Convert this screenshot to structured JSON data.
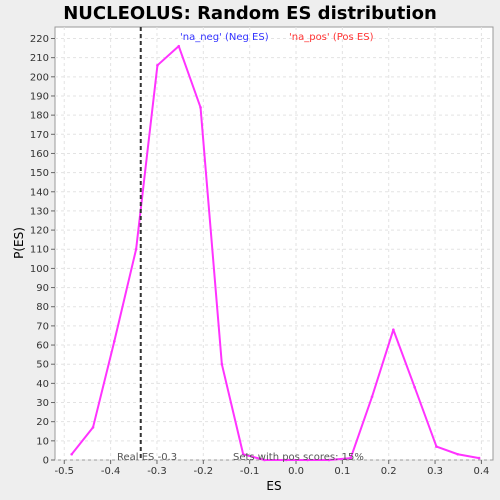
{
  "chart_data": {
    "type": "line",
    "title": "NUCLEOLUS: Random ES distribution",
    "xlabel": "ES",
    "ylabel": "P(ES)",
    "xlim": [
      -0.52,
      0.425
    ],
    "ylim": [
      0,
      226
    ],
    "x_ticks": [
      -0.5,
      -0.4,
      -0.3,
      -0.2,
      -0.1,
      0.0,
      0.1,
      0.2,
      0.3,
      0.4
    ],
    "x_tick_labels": [
      "-0.5",
      "-0.4",
      "-0.3",
      "-0.2",
      "-0.1",
      "0.0",
      "0.1",
      "0.2",
      "0.3",
      "0.4"
    ],
    "y_ticks": [
      0,
      10,
      20,
      30,
      40,
      50,
      60,
      70,
      80,
      90,
      100,
      110,
      120,
      130,
      140,
      150,
      160,
      170,
      180,
      190,
      200,
      210,
      220
    ],
    "grid": true,
    "series": [
      {
        "color": "#ff33ff",
        "x": [
          -0.484,
          -0.438,
          -0.392,
          -0.345,
          -0.299,
          -0.253,
          -0.206,
          -0.16,
          -0.114,
          -0.068,
          -0.021,
          0.025,
          0.071,
          0.118,
          0.164,
          0.21,
          0.256,
          0.303,
          0.349,
          0.395
        ],
        "y": [
          3,
          17,
          62,
          110,
          206,
          216,
          184,
          50,
          3,
          0,
          0,
          0,
          0,
          1,
          33,
          68,
          38,
          7,
          3,
          1
        ]
      }
    ],
    "legend": {
      "placement": "top",
      "entries": [
        {
          "label": "'na_neg' (Neg ES)",
          "color": "#3333ff"
        },
        {
          "label": "'na_pos' (Pos ES)",
          "color": "#ff3333"
        }
      ]
    },
    "real_es": {
      "value": -0.335,
      "label": "Real ES -0.3"
    },
    "annotation": "Sets with pos scores: 15%"
  }
}
